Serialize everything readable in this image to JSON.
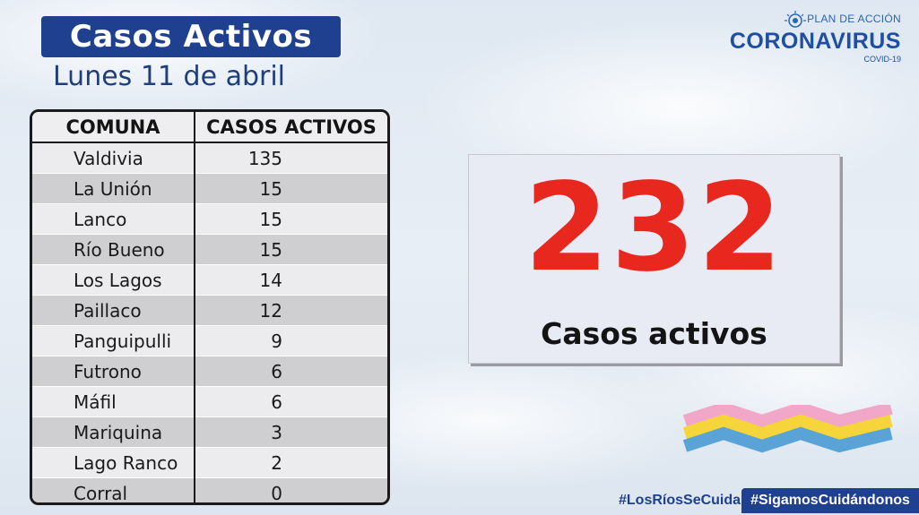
{
  "header": {
    "title": "Casos Activos",
    "date": "Lunes 11 de abril"
  },
  "logo": {
    "plan": "PLAN DE ACCIÓN",
    "name": "CORONAVIRUS",
    "sub": "COVID-19"
  },
  "table": {
    "headers": [
      "COMUNA",
      "CASOS ACTIVOS"
    ],
    "rows": [
      {
        "comuna": "Valdivia",
        "casos": "135"
      },
      {
        "comuna": "La Unión",
        "casos": "15"
      },
      {
        "comuna": "Lanco",
        "casos": "15"
      },
      {
        "comuna": "Río Bueno",
        "casos": "15"
      },
      {
        "comuna": "Los Lagos",
        "casos": "14"
      },
      {
        "comuna": "Paillaco",
        "casos": "12"
      },
      {
        "comuna": "Panguipulli",
        "casos": "9"
      },
      {
        "comuna": "Futrono",
        "casos": "6"
      },
      {
        "comuna": "Máfil",
        "casos": "6"
      },
      {
        "comuna": "Mariquina",
        "casos": "3"
      },
      {
        "comuna": "Lago Ranco",
        "casos": "2"
      },
      {
        "comuna": "Corral",
        "casos": "0"
      }
    ]
  },
  "total": {
    "value": "232",
    "label": "Casos activos"
  },
  "footer": {
    "hashtag1": "#LosRíosSeCuida",
    "hashtag2": "#SigamosCuidándonos"
  },
  "colors": {
    "brand_blue": "#1f3f8f",
    "accent_red": "#e8281e",
    "stripe_pink": "#f2a6c8",
    "stripe_yellow": "#f5d53a",
    "stripe_blue": "#5aa3d6"
  }
}
